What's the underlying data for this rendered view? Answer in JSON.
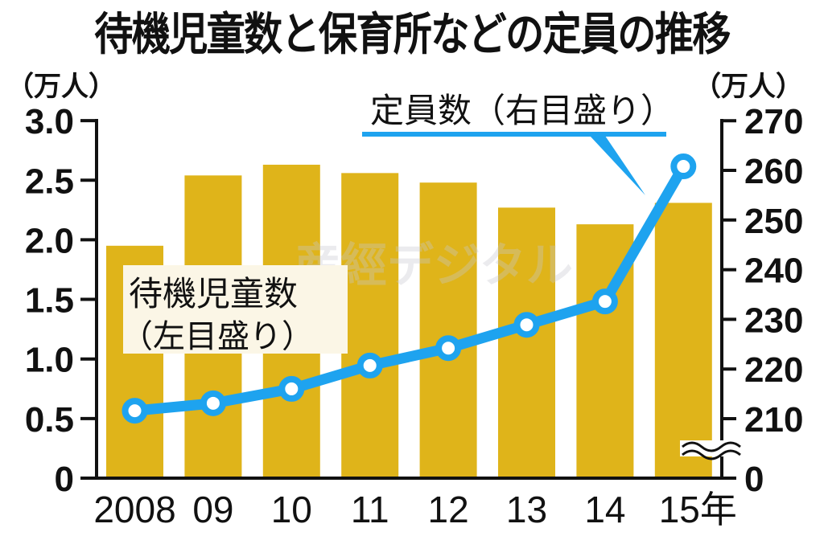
{
  "chart_data": {
    "type": "bar+line",
    "title": "待機児童数と保育所などの定員の推移",
    "categories": [
      "2008",
      "09",
      "10",
      "11",
      "12",
      "13",
      "14",
      "15年"
    ],
    "series": [
      {
        "name": "待機児童数（左目盛り）",
        "type": "bar",
        "axis": "left",
        "color": "#dfb41a",
        "values": [
          1.95,
          2.54,
          2.63,
          2.56,
          2.48,
          2.27,
          2.13,
          2.31
        ]
      },
      {
        "name": "定員数（右目盛り）",
        "type": "line",
        "axis": "right",
        "color": "#1ea3ef",
        "values": [
          211.6,
          213.1,
          216.0,
          220.7,
          224.2,
          228.9,
          233.6,
          260.8
        ]
      }
    ],
    "left_axis": {
      "unit": "（万人）",
      "ticks": [
        "0",
        "0.5",
        "1.0",
        "1.5",
        "2.0",
        "2.5",
        "3.0"
      ],
      "ylim": [
        0,
        3.0
      ]
    },
    "right_axis": {
      "unit": "（万人）",
      "ticks": [
        "0",
        "210",
        "220",
        "230",
        "240",
        "250",
        "260",
        "270"
      ],
      "ylim": [
        205,
        270
      ],
      "axis_break": true
    },
    "xlabel": "",
    "ylabel": "万人",
    "grid": false,
    "legend": [
      {
        "label_line1": "待機児童数",
        "label_line2": "（左目盛り）"
      },
      {
        "label": "定員数（右目盛り）"
      }
    ],
    "watermark": "産經デジタル"
  }
}
